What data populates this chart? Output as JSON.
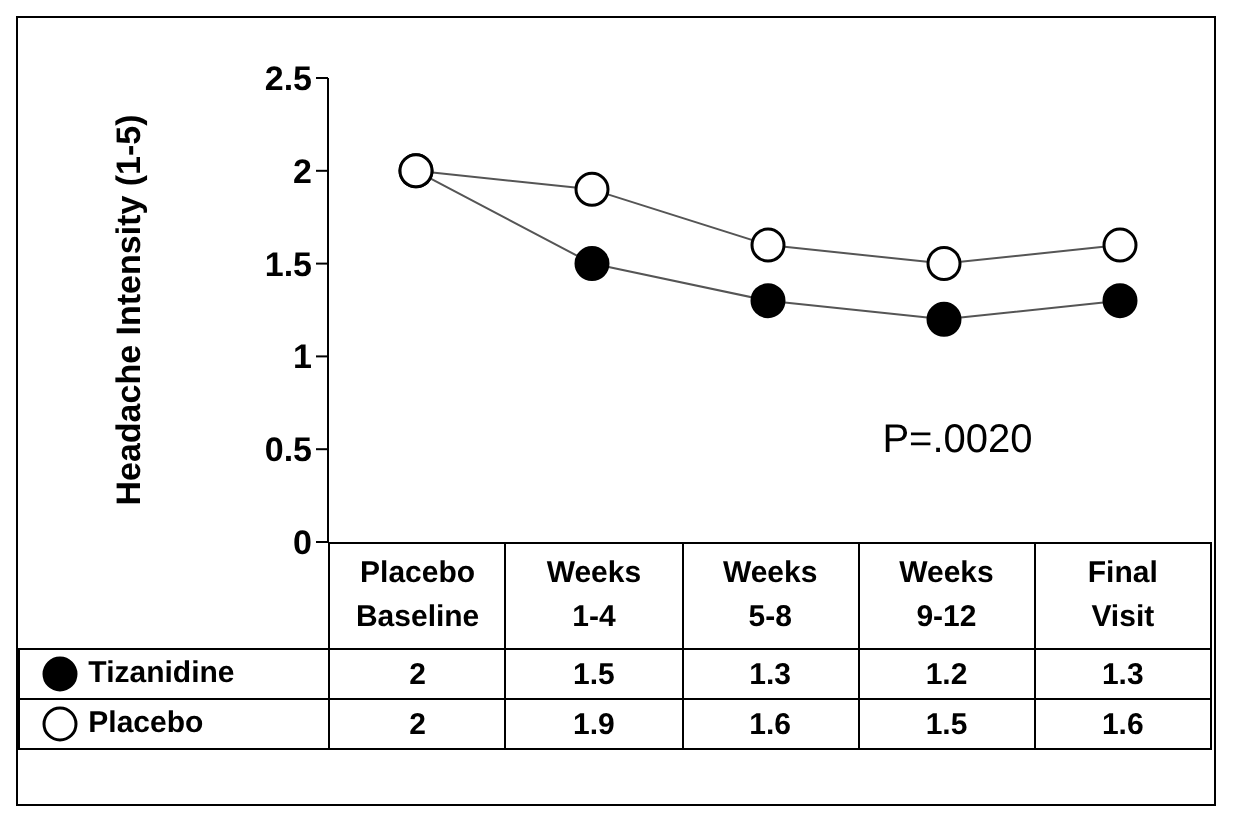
{
  "chart_data": {
    "type": "line",
    "ylabel": "Headache Intensity (1-5)",
    "categories": [
      "Placebo Baseline",
      "Weeks 1-4",
      "Weeks 5-8",
      "Weeks 9-12",
      "Final Visit"
    ],
    "series": [
      {
        "name": "Tizanidine",
        "color": "#000000",
        "values": [
          2,
          1.5,
          1.3,
          1.2,
          1.3
        ]
      },
      {
        "name": "Placebo",
        "color": "#ffffff",
        "values": [
          2,
          1.9,
          1.6,
          1.5,
          1.6
        ]
      }
    ],
    "ylim": [
      0,
      2.5
    ],
    "yticks": [
      0,
      0.5,
      1,
      1.5,
      2,
      2.5
    ],
    "marker": "circle",
    "legend": "bottom left",
    "data_labels": true,
    "annotations": [
      "P=.0020"
    ]
  }
}
